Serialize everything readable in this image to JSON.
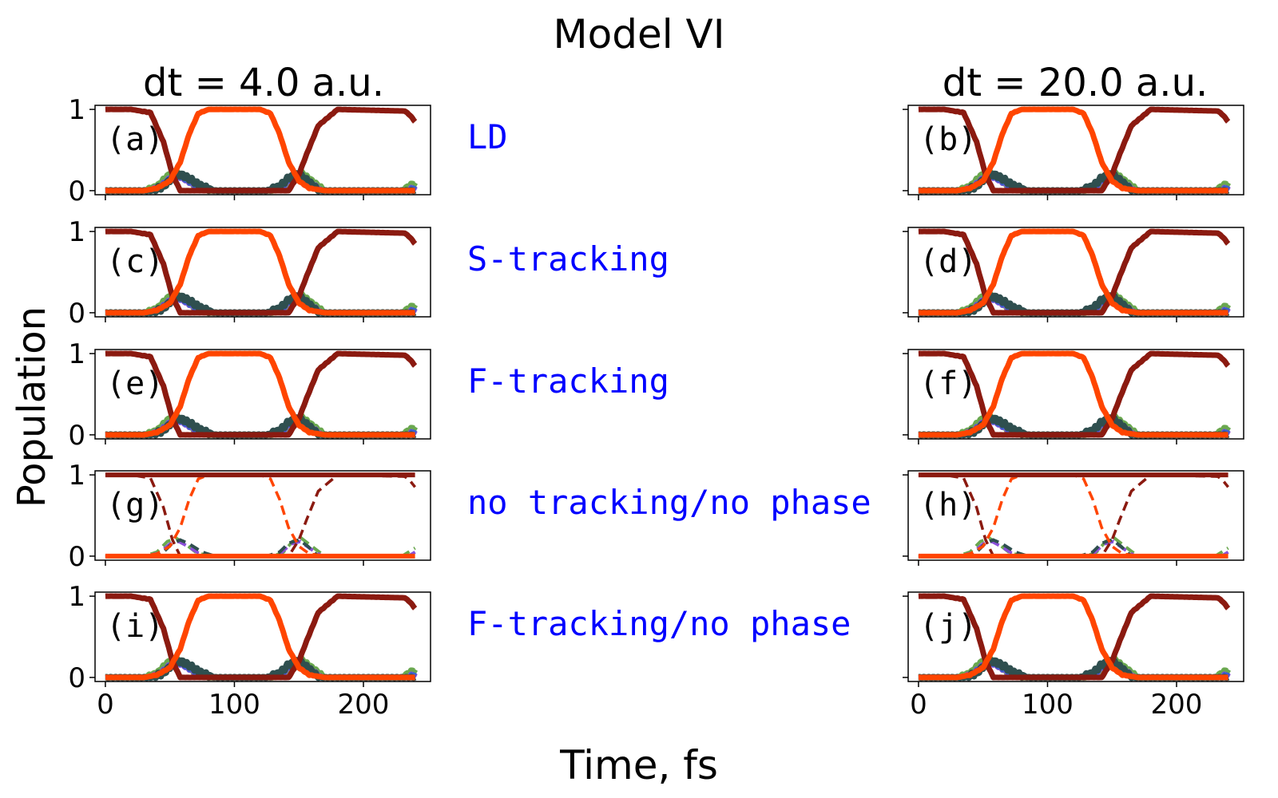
{
  "title": "Model VI",
  "xlabel": "Time, fs",
  "ylabel": "Population",
  "col_titles": [
    "dt = 4.0 a.u.",
    "dt = 20.0 a.u."
  ],
  "methods": [
    "LD",
    "S-tracking",
    "F-tracking",
    "no tracking/no phase",
    "F-tracking/no phase"
  ],
  "panel_labels": [
    "(a)",
    "(b)",
    "(c)",
    "(d)",
    "(e)",
    "(f)",
    "(g)",
    "(h)",
    "(i)",
    "(j)"
  ],
  "colors": {
    "state_top": "#8b1a10",
    "state_orange": "#ff4500",
    "state_green": "#6aa84f",
    "state_purple": "#8a4fd8",
    "state_blue": "#3b5fd0",
    "state_dark": "#2f4f4f",
    "method_text": "#0000ff"
  },
  "chart_data": {
    "type": "line",
    "xlim": [
      -8,
      252
    ],
    "ylim": [
      -0.05,
      1.05
    ],
    "xticks": [
      0,
      100,
      200
    ],
    "yticks": [
      0,
      1
    ],
    "t_end": 240,
    "series": [
      {
        "legend": "dark red",
        "x": [
          0,
          20,
          35,
          45,
          52,
          58,
          70,
          130,
          142,
          150,
          156,
          165,
          180,
          232,
          236,
          240
        ],
        "y": [
          1.0,
          1.0,
          0.96,
          0.6,
          0.2,
          0.0,
          0.0,
          0.0,
          0.0,
          0.2,
          0.45,
          0.8,
          1.0,
          0.98,
          0.93,
          0.85
        ]
      },
      {
        "legend": "orange red",
        "x": [
          0,
          30,
          40,
          50,
          58,
          65,
          72,
          80,
          120,
          128,
          135,
          142,
          150,
          158,
          170,
          240
        ],
        "y": [
          0.0,
          0.0,
          0.03,
          0.12,
          0.35,
          0.7,
          0.95,
          1.0,
          1.0,
          0.95,
          0.7,
          0.35,
          0.12,
          0.03,
          0.0,
          0.0
        ]
      },
      {
        "legend": "green",
        "x": [
          0,
          30,
          40,
          48,
          55,
          62,
          70,
          80,
          130,
          138,
          145,
          152,
          160,
          170,
          230,
          240
        ],
        "y": [
          0.0,
          0.0,
          0.05,
          0.18,
          0.22,
          0.15,
          0.05,
          0.0,
          0.0,
          0.05,
          0.18,
          0.22,
          0.12,
          0.0,
          0.0,
          0.1
        ]
      },
      {
        "legend": "purple",
        "x": [
          0,
          32,
          42,
          50,
          57,
          64,
          72,
          82,
          128,
          136,
          144,
          151,
          158,
          168,
          235,
          240
        ],
        "y": [
          0.0,
          0.0,
          0.04,
          0.15,
          0.18,
          0.12,
          0.04,
          0.0,
          0.0,
          0.04,
          0.15,
          0.18,
          0.1,
          0.0,
          0.0,
          0.05
        ]
      },
      {
        "legend": "dark slate",
        "x": [
          0,
          35,
          45,
          52,
          58,
          65,
          75,
          85,
          125,
          135,
          142,
          150,
          157,
          165,
          240
        ],
        "y": [
          0.0,
          0.0,
          0.05,
          0.16,
          0.2,
          0.15,
          0.05,
          0.0,
          0.0,
          0.05,
          0.16,
          0.2,
          0.12,
          0.0,
          0.0
        ]
      }
    ],
    "panels": [
      {
        "label": "(a)",
        "method": "LD",
        "dt": "4.0 a.u."
      },
      {
        "label": "(b)",
        "method": "LD",
        "dt": "20.0 a.u."
      },
      {
        "label": "(c)",
        "method": "S-tracking",
        "dt": "4.0 a.u."
      },
      {
        "label": "(d)",
        "method": "S-tracking",
        "dt": "20.0 a.u."
      },
      {
        "label": "(e)",
        "method": "F-tracking",
        "dt": "4.0 a.u."
      },
      {
        "label": "(f)",
        "method": "F-tracking",
        "dt": "20.0 a.u."
      },
      {
        "label": "(g)",
        "method": "no tracking/no phase",
        "dt": "4.0 a.u.",
        "style": "flat solid lines at 1.0 and 0.0 with dashed exact curves"
      },
      {
        "label": "(h)",
        "method": "no tracking/no phase",
        "dt": "20.0 a.u.",
        "style": "flat solid lines at 1.0 and 0.0 with dashed exact curves"
      },
      {
        "label": "(i)",
        "method": "F-tracking/no phase",
        "dt": "4.0 a.u."
      },
      {
        "label": "(j)",
        "method": "F-tracking/no phase",
        "dt": "20.0 a.u."
      }
    ],
    "flat_lines_no_tracking": {
      "top": 1.0,
      "bottom": 0.0
    }
  }
}
